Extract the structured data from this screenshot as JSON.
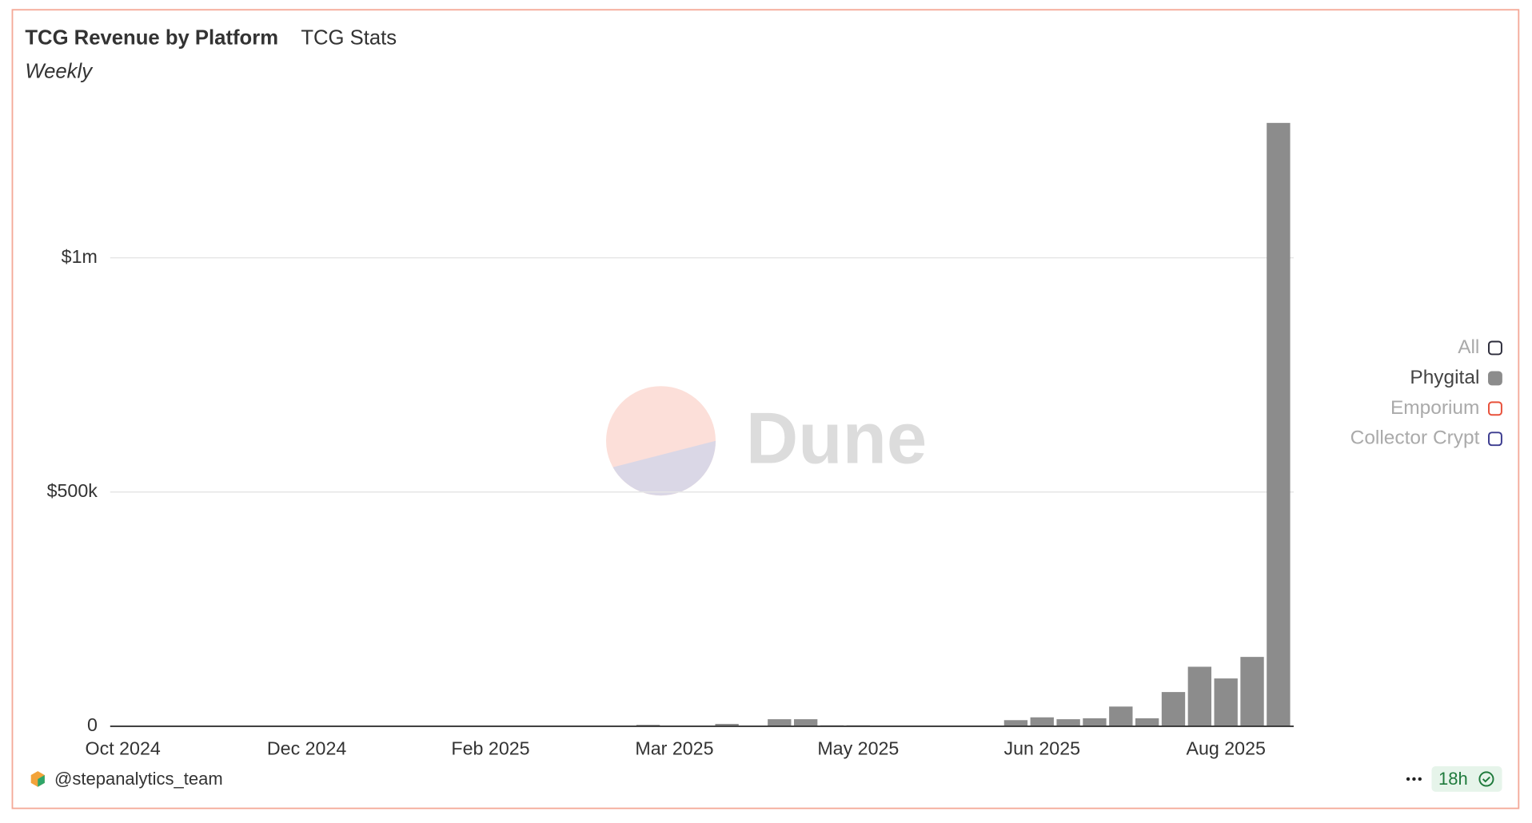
{
  "chart_data": {
    "type": "bar",
    "title": "TCG Revenue by Platform",
    "subtitle": "TCG Stats",
    "note": "Weekly",
    "watermark": "Dune",
    "author": "@stepanalytics_team",
    "freshness": "18h",
    "categories": [
      "Oct 2024",
      null,
      null,
      null,
      null,
      null,
      null,
      "Dec 2024",
      null,
      null,
      null,
      null,
      null,
      null,
      "Feb 2025",
      null,
      null,
      null,
      null,
      null,
      null,
      "Mar 2025",
      null,
      null,
      null,
      null,
      null,
      null,
      "May 2025",
      null,
      null,
      null,
      null,
      null,
      null,
      "Jun 2025",
      null,
      null,
      null,
      null,
      null,
      null,
      "Aug 2025",
      null,
      null
    ],
    "series": [
      {
        "name": "All",
        "color": "#2b2b3a",
        "hidden": true
      },
      {
        "name": "Phygital",
        "color": "#8c8c8c",
        "hidden": false,
        "values": [
          0,
          0,
          0,
          0,
          0,
          0,
          0,
          0,
          0,
          0,
          0,
          0,
          0,
          0,
          0,
          0,
          0,
          0,
          0,
          0,
          3000,
          1000,
          500,
          5000,
          1000,
          15000,
          15000,
          2000,
          2000,
          1000,
          1000,
          1000,
          1000,
          1000,
          13000,
          19000,
          15000,
          17000,
          42000,
          17000,
          73000,
          127000,
          102000,
          148000,
          1288000
        ]
      },
      {
        "name": "Emporium",
        "color": "#e8503a",
        "hidden": true
      },
      {
        "name": "Collector Crypt",
        "color": "#3b3b8f",
        "hidden": true
      }
    ],
    "ylim": [
      0,
      1300000
    ],
    "yticks": [
      0,
      {
        "value": 500000,
        "label": "$500k"
      },
      {
        "value": 1000000,
        "label": "$1m"
      }
    ],
    "grid": true,
    "legend": "right"
  }
}
